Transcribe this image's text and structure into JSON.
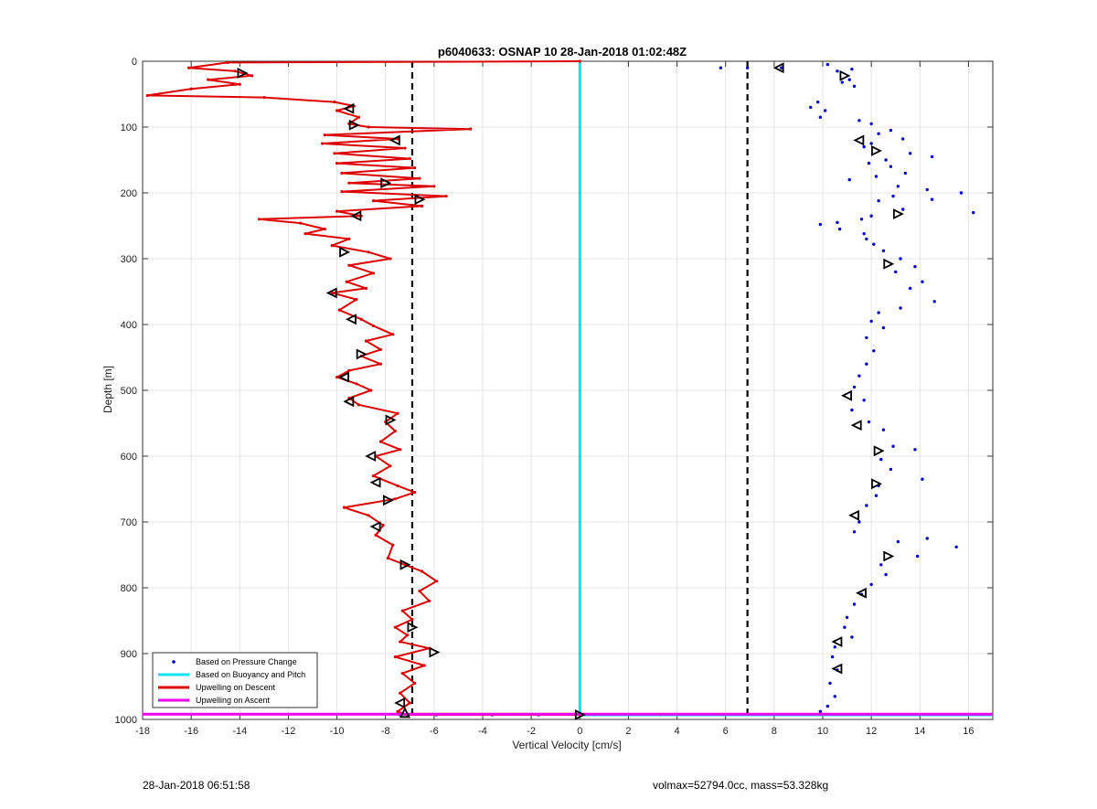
{
  "chart_data": {
    "type": "scatter",
    "title": "p6040633: OSNAP 10 28-Jan-2018 01:02:48Z",
    "xlabel": "Vertical Velocity [cm/s]",
    "ylabel": "Depth [m]",
    "xlim": [
      -18,
      17
    ],
    "ylim": [
      0,
      1000
    ],
    "y_reversed": true,
    "grid": true,
    "x_ticks": [
      -18,
      -16,
      -14,
      -12,
      -10,
      -8,
      -6,
      -4,
      -2,
      0,
      2,
      4,
      6,
      8,
      10,
      12,
      14,
      16
    ],
    "y_ticks": [
      0,
      100,
      200,
      300,
      400,
      500,
      600,
      700,
      800,
      900,
      1000
    ],
    "legend_position": "bottom-left",
    "reference_lines_x": [
      -6.9,
      6.9
    ],
    "series": [
      {
        "name": "Based on Pressure Change",
        "kind": "markers",
        "color": "#0000cc",
        "points": [
          [
            5.8,
            10
          ],
          [
            6.9,
            10
          ],
          [
            8.3,
            10
          ],
          [
            10.2,
            5
          ],
          [
            10.6,
            15
          ],
          [
            11.2,
            12
          ],
          [
            11.1,
            28
          ],
          [
            10.8,
            32
          ],
          [
            11.3,
            38
          ],
          [
            9.8,
            62
          ],
          [
            9.5,
            70
          ],
          [
            10.1,
            75
          ],
          [
            9.9,
            85
          ],
          [
            11.5,
            90
          ],
          [
            12.0,
            95
          ],
          [
            12.3,
            110
          ],
          [
            12.8,
            105
          ],
          [
            13.3,
            118
          ],
          [
            12.0,
            125
          ],
          [
            11.7,
            130
          ],
          [
            13.6,
            140
          ],
          [
            14.5,
            145
          ],
          [
            12.6,
            150
          ],
          [
            11.9,
            155
          ],
          [
            12.8,
            160
          ],
          [
            13.4,
            170
          ],
          [
            12.2,
            175
          ],
          [
            11.1,
            180
          ],
          [
            13.1,
            190
          ],
          [
            14.3,
            195
          ],
          [
            15.7,
            200
          ],
          [
            12.9,
            205
          ],
          [
            14.5,
            210
          ],
          [
            12.3,
            212
          ],
          [
            16.2,
            230
          ],
          [
            13.3,
            225
          ],
          [
            12.0,
            235
          ],
          [
            11.6,
            240
          ],
          [
            10.6,
            245
          ],
          [
            9.9,
            248
          ],
          [
            10.7,
            255
          ],
          [
            11.7,
            262
          ],
          [
            11.8,
            270
          ],
          [
            12.1,
            278
          ],
          [
            12.5,
            288
          ],
          [
            13.2,
            300
          ],
          [
            13.8,
            312
          ],
          [
            13.0,
            320
          ],
          [
            14.1,
            335
          ],
          [
            13.6,
            345
          ],
          [
            14.6,
            365
          ],
          [
            13.2,
            375
          ],
          [
            12.3,
            382
          ],
          [
            12.0,
            395
          ],
          [
            12.5,
            405
          ],
          [
            11.8,
            420
          ],
          [
            12.1,
            440
          ],
          [
            11.8,
            460
          ],
          [
            11.5,
            478
          ],
          [
            11.3,
            495
          ],
          [
            11.7,
            515
          ],
          [
            11.2,
            530
          ],
          [
            11.9,
            548
          ],
          [
            12.5,
            560
          ],
          [
            12.9,
            585
          ],
          [
            13.8,
            590
          ],
          [
            12.4,
            605
          ],
          [
            12.8,
            620
          ],
          [
            14.1,
            635
          ],
          [
            12.3,
            645
          ],
          [
            12.2,
            660
          ],
          [
            11.8,
            675
          ],
          [
            11.5,
            700
          ],
          [
            11.3,
            715
          ],
          [
            13.1,
            730
          ],
          [
            14.3,
            725
          ],
          [
            15.5,
            738
          ],
          [
            13.9,
            752
          ],
          [
            12.4,
            765
          ],
          [
            12.6,
            780
          ],
          [
            12.0,
            795
          ],
          [
            11.6,
            810
          ],
          [
            11.3,
            825
          ],
          [
            11.0,
            845
          ],
          [
            10.9,
            860
          ],
          [
            11.2,
            875
          ],
          [
            10.5,
            890
          ],
          [
            10.4,
            905
          ],
          [
            10.6,
            925
          ],
          [
            10.3,
            945
          ],
          [
            10.5,
            965
          ],
          [
            10.2,
            980
          ],
          [
            9.9,
            988
          ],
          [
            -7.4,
            993
          ],
          [
            -5.9,
            993
          ],
          [
            -3.6,
            993
          ],
          [
            -1.7,
            993
          ],
          [
            0.6,
            993
          ],
          [
            3.3,
            993
          ],
          [
            5.9,
            993
          ],
          [
            8.0,
            993
          ]
        ]
      },
      {
        "name": "Based on Buoyancy and Pitch",
        "kind": "line",
        "color": "#00e6f0",
        "points": [
          [
            0,
            0
          ],
          [
            0,
            993
          ],
          [
            17,
            993
          ]
        ]
      },
      {
        "name": "Upwelling on Descent",
        "kind": "line",
        "color": "#dd0000",
        "points": [
          [
            0,
            0
          ],
          [
            -14.5,
            2
          ],
          [
            -16.1,
            10
          ],
          [
            -14.2,
            15
          ],
          [
            -13.5,
            22
          ],
          [
            -15.3,
            28
          ],
          [
            -14.0,
            35
          ],
          [
            -16.0,
            42
          ],
          [
            -17.8,
            52
          ],
          [
            -13.0,
            55
          ],
          [
            -10.1,
            62
          ],
          [
            -9.3,
            68
          ],
          [
            -10.0,
            75
          ],
          [
            -9.1,
            85
          ],
          [
            -9.5,
            95
          ],
          [
            -8.7,
            100
          ],
          [
            -4.5,
            103
          ],
          [
            -10.5,
            112
          ],
          [
            -7.5,
            118
          ],
          [
            -10.6,
            125
          ],
          [
            -7.2,
            132
          ],
          [
            -10.1,
            140
          ],
          [
            -7.0,
            148
          ],
          [
            -10.0,
            155
          ],
          [
            -6.8,
            162
          ],
          [
            -9.8,
            170
          ],
          [
            -6.6,
            178
          ],
          [
            -9.5,
            185
          ],
          [
            -6.0,
            190
          ],
          [
            -9.8,
            198
          ],
          [
            -5.5,
            205
          ],
          [
            -8.5,
            212
          ],
          [
            -6.5,
            220
          ],
          [
            -10.0,
            228
          ],
          [
            -9.0,
            235
          ],
          [
            -13.2,
            240
          ],
          [
            -11.5,
            246
          ],
          [
            -10.5,
            255
          ],
          [
            -11.3,
            262
          ],
          [
            -9.5,
            270
          ],
          [
            -10.2,
            280
          ],
          [
            -8.7,
            290
          ],
          [
            -7.8,
            300
          ],
          [
            -9.5,
            310
          ],
          [
            -8.5,
            322
          ],
          [
            -9.6,
            335
          ],
          [
            -8.8,
            345
          ],
          [
            -10.2,
            352
          ],
          [
            -9.2,
            362
          ],
          [
            -9.9,
            378
          ],
          [
            -9.0,
            392
          ],
          [
            -8.5,
            402
          ],
          [
            -7.7,
            415
          ],
          [
            -8.8,
            425
          ],
          [
            -8.2,
            438
          ],
          [
            -9.0,
            448
          ],
          [
            -8.2,
            460
          ],
          [
            -9.5,
            470
          ],
          [
            -10.0,
            480
          ],
          [
            -9.2,
            490
          ],
          [
            -8.6,
            500
          ],
          [
            -9.5,
            512
          ],
          [
            -9.1,
            522
          ],
          [
            -7.5,
            535
          ],
          [
            -8.0,
            548
          ],
          [
            -7.6,
            562
          ],
          [
            -8.2,
            578
          ],
          [
            -7.4,
            590
          ],
          [
            -8.4,
            600
          ],
          [
            -7.8,
            615
          ],
          [
            -8.5,
            630
          ],
          [
            -7.5,
            645
          ],
          [
            -6.8,
            655
          ],
          [
            -7.6,
            665
          ],
          [
            -9.7,
            678
          ],
          [
            -8.7,
            690
          ],
          [
            -8.1,
            705
          ],
          [
            -8.4,
            720
          ],
          [
            -7.7,
            735
          ],
          [
            -7.9,
            755
          ],
          [
            -7.2,
            765
          ],
          [
            -6.5,
            775
          ],
          [
            -5.9,
            790
          ],
          [
            -6.6,
            805
          ],
          [
            -6.2,
            820
          ],
          [
            -7.3,
            835
          ],
          [
            -6.9,
            848
          ],
          [
            -7.6,
            860
          ],
          [
            -7.1,
            872
          ],
          [
            -7.4,
            882
          ],
          [
            -6.2,
            892
          ],
          [
            -7.6,
            905
          ],
          [
            -6.4,
            918
          ],
          [
            -7.3,
            930
          ],
          [
            -6.8,
            945
          ],
          [
            -7.4,
            960
          ],
          [
            -7.0,
            975
          ],
          [
            -7.5,
            988
          ],
          [
            -7.1,
            993
          ],
          [
            0,
            993
          ]
        ]
      },
      {
        "name": "Upwelling on Ascent",
        "kind": "line",
        "color": "#ee00ee",
        "points": [
          [
            -18,
            992
          ],
          [
            17,
            992
          ]
        ]
      }
    ],
    "triangle_markers": {
      "color": "#000000",
      "points": [
        [
          -13.9,
          18,
          "right"
        ],
        [
          -9.5,
          72,
          "left"
        ],
        [
          -9.3,
          97,
          "right"
        ],
        [
          -7.6,
          120,
          "left"
        ],
        [
          -8.0,
          185,
          "right"
        ],
        [
          -6.6,
          210,
          "right"
        ],
        [
          -9.2,
          235,
          "left"
        ],
        [
          -9.7,
          290,
          "right"
        ],
        [
          -10.2,
          352,
          "left"
        ],
        [
          -9.4,
          392,
          "left"
        ],
        [
          -9.0,
          445,
          "right"
        ],
        [
          -9.7,
          480,
          "left"
        ],
        [
          -9.5,
          517,
          "left"
        ],
        [
          -7.8,
          545,
          "right"
        ],
        [
          -8.6,
          600,
          "left"
        ],
        [
          -8.4,
          640,
          "left"
        ],
        [
          -7.9,
          667,
          "right"
        ],
        [
          -8.4,
          707,
          "left"
        ],
        [
          -7.2,
          765,
          "right"
        ],
        [
          -6.9,
          860,
          "right"
        ],
        [
          -6.0,
          898,
          "right"
        ],
        [
          -7.4,
          975,
          "left"
        ],
        [
          -7.2,
          990,
          "up"
        ],
        [
          8.2,
          10,
          "left"
        ],
        [
          10.9,
          22,
          "right"
        ],
        [
          11.5,
          120,
          "left"
        ],
        [
          12.2,
          136,
          "right"
        ],
        [
          13.1,
          232,
          "right"
        ],
        [
          12.7,
          308,
          "right"
        ],
        [
          11.0,
          508,
          "left"
        ],
        [
          11.4,
          553,
          "left"
        ],
        [
          12.3,
          592,
          "right"
        ],
        [
          12.2,
          642,
          "right"
        ],
        [
          11.3,
          690,
          "left"
        ],
        [
          12.7,
          752,
          "right"
        ],
        [
          11.6,
          808,
          "left"
        ],
        [
          10.6,
          882,
          "left"
        ],
        [
          10.6,
          923,
          "left"
        ],
        [
          0,
          993,
          "right"
        ]
      ]
    }
  },
  "footer": {
    "left": "28-Jan-2018 06:51:58",
    "right": "volmax=52794.0cc, mass=53.328kg"
  }
}
